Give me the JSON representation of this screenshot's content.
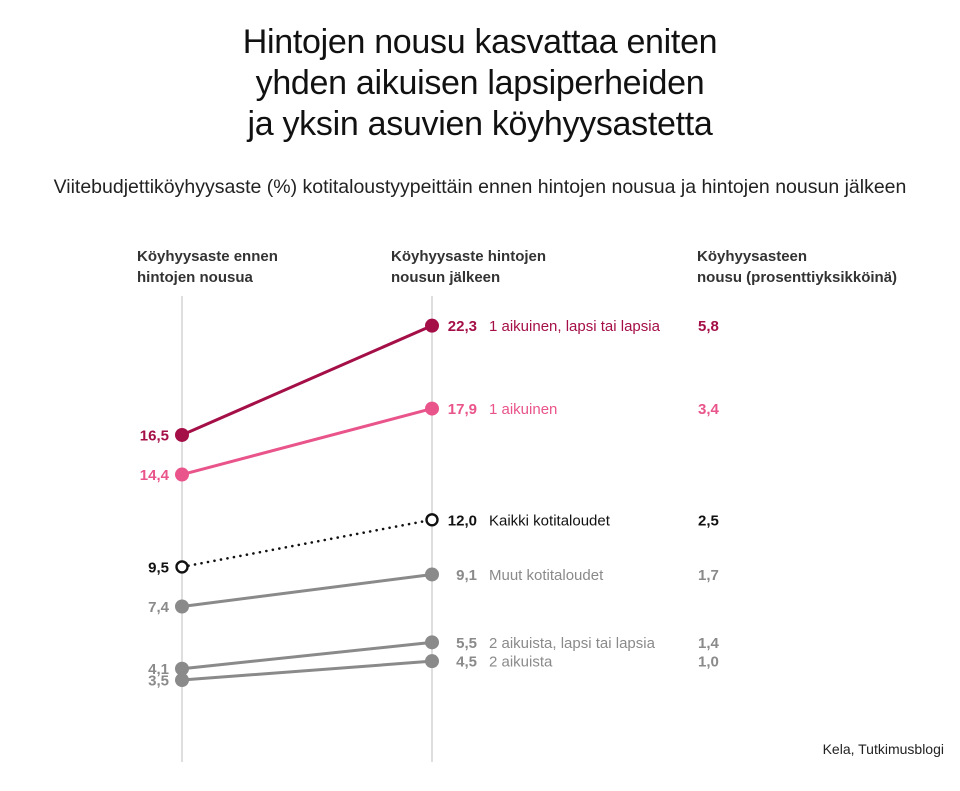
{
  "title_lines": [
    "Hintojen nousu kasvattaa eniten",
    "yhden aikuisen lapsiperheiden",
    "ja yksin asuvien köyhyysastetta"
  ],
  "subtitle": "Viitebudjettiköyhyysaste (%) kotitaloustyypeittäin ennen hintojen nousua ja hintojen nousun jälkeen",
  "column_headers": {
    "before": [
      "Köyhyysaste ennen",
      "hintojen nousua"
    ],
    "after": [
      "Köyhyysaste hintojen",
      "nousun jälkeen"
    ],
    "increase": [
      "Köyhyysasteen",
      "nousu (prosenttiyksikköinä)"
    ]
  },
  "source": "Kela, Tutkimusblogi",
  "chart_data": {
    "type": "line",
    "x": [
      "Köyhyysaste ennen hintojen nousua",
      "Köyhyysaste hintojen nousun jälkeen"
    ],
    "series": [
      {
        "name": "1 aikuinen, lapsi tai lapsia",
        "values": [
          16.5,
          22.3
        ],
        "before_label": "16,5",
        "after_label": "22,3",
        "increase": "5,8",
        "color": "#a50f47",
        "style": "solid",
        "bold": true
      },
      {
        "name": "1 aikuinen",
        "values": [
          14.4,
          17.9
        ],
        "before_label": "14,4",
        "after_label": "17,9",
        "increase": "3,4",
        "color": "#e9548a",
        "style": "solid",
        "bold": false
      },
      {
        "name": "Kaikki kotitaloudet",
        "values": [
          9.5,
          12.0
        ],
        "before_label": "9,5",
        "after_label": "12,0",
        "increase": "2,5",
        "color": "#111111",
        "style": "dotted",
        "bold": false
      },
      {
        "name": "Muut kotitaloudet",
        "values": [
          7.4,
          9.1
        ],
        "before_label": "7,4",
        "after_label": "9,1",
        "increase": "1,7",
        "color": "#8a8a8a",
        "style": "solid",
        "bold": false
      },
      {
        "name": "2 aikuista, lapsi tai lapsia",
        "values": [
          4.1,
          5.5
        ],
        "before_label": "4,1",
        "after_label": "5,5",
        "increase": "1,4",
        "color": "#8a8a8a",
        "style": "solid",
        "bold": false
      },
      {
        "name": "2 aikuista",
        "values": [
          3.5,
          4.5
        ],
        "before_label": "3,5",
        "after_label": "4,5",
        "increase": "1,0",
        "color": "#8a8a8a",
        "style": "solid",
        "bold": false
      }
    ],
    "grid": false
  }
}
